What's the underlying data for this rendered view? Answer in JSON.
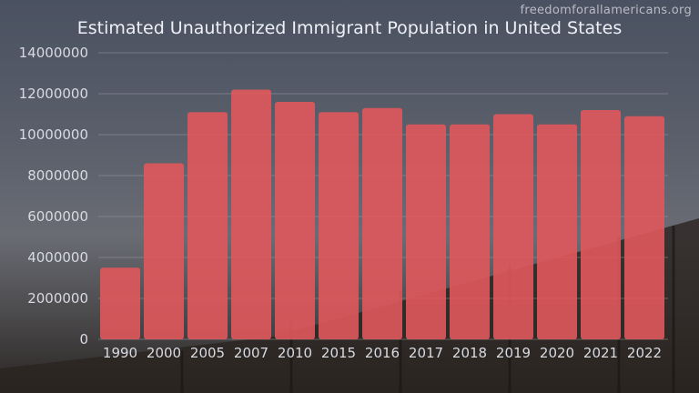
{
  "watermark": "freedomforallamericans.org",
  "chart_data": {
    "type": "bar",
    "title": "Estimated Unauthorized Immigrant Population in United States",
    "xlabel": "",
    "ylabel": "",
    "categories": [
      "1990",
      "2000",
      "2005",
      "2007",
      "2010",
      "2015",
      "2016",
      "2017",
      "2018",
      "2019",
      "2020",
      "2021",
      "2022"
    ],
    "values": [
      3500000,
      8600000,
      11100000,
      12200000,
      11600000,
      11100000,
      11300000,
      10500000,
      10500000,
      11000000,
      10500000,
      11200000,
      10900000
    ],
    "ylim": [
      0,
      14000000
    ],
    "yticks": [
      "0",
      "2000000",
      "4000000",
      "6000000",
      "8000000",
      "10000000",
      "12000000",
      "14000000"
    ],
    "grid": true,
    "bar_color": "#e0585c"
  }
}
